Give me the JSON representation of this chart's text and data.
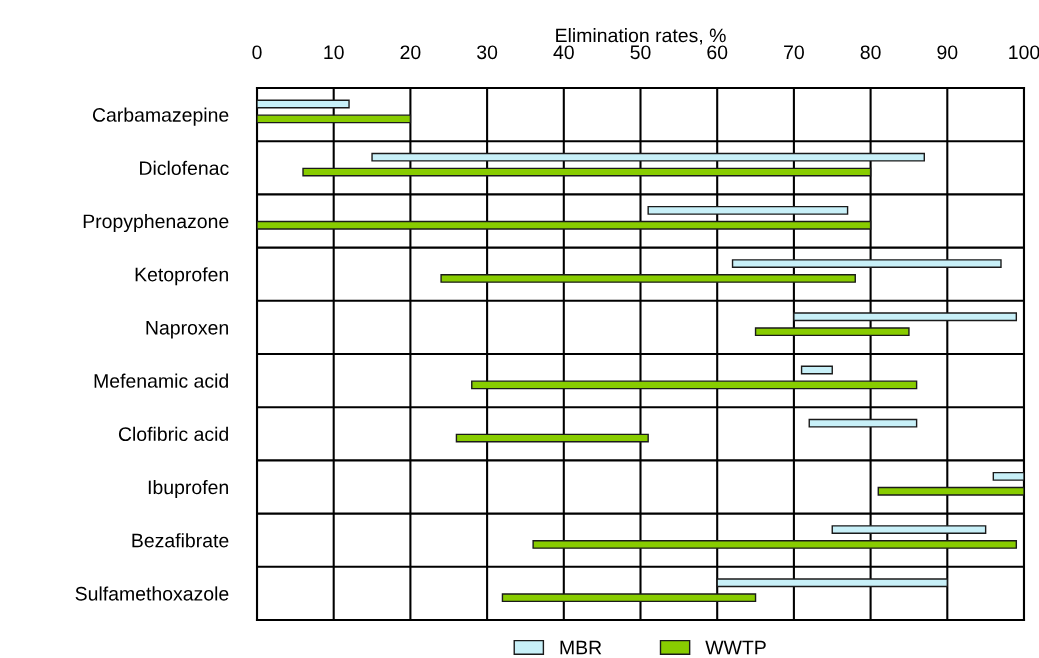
{
  "chart_data": {
    "type": "bar",
    "orientation": "horizontal",
    "xlabel": "Elimination rates, %",
    "categories": [
      "Carbamazepine",
      "Diclofenac",
      "Propyphenazone",
      "Ketoprofen",
      "Naproxen",
      "Mefenamic acid",
      "Clofibric acid",
      "Ibuprofen",
      "Bezafibrate",
      "Sulfamethoxazole"
    ],
    "series": [
      {
        "name": "MBR",
        "color": "#c8f0f8",
        "base": [
          0,
          15,
          51,
          62,
          70,
          71,
          72,
          96,
          75,
          60
        ],
        "values": [
          12,
          72,
          26,
          35,
          29,
          4,
          14,
          4,
          20,
          30
        ]
      },
      {
        "name": "WWTP",
        "color": "#88cc00",
        "base": [
          0,
          6,
          0,
          24,
          65,
          28,
          26,
          81,
          36,
          32
        ],
        "values": [
          20,
          74,
          80,
          54,
          20,
          58,
          25,
          19,
          63,
          33
        ]
      }
    ],
    "xlim": [
      0,
      100
    ],
    "xticks": [
      0,
      10,
      20,
      30,
      40,
      50,
      60,
      70,
      80,
      90,
      100
    ],
    "grid": true,
    "legend": "bottom"
  }
}
